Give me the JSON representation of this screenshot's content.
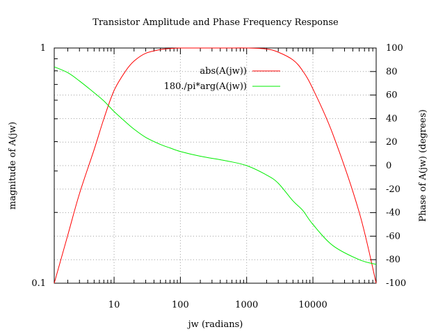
{
  "chart_data": {
    "type": "line",
    "title": "Transistor Amplitude and Phase Frequency Response",
    "xlabel": "jw (radians)",
    "ylabel": "magnitude of A(jw)",
    "y2label": "Phase of A(jw) (degrees)",
    "x_scale": "log",
    "y_scale": "log",
    "xlim": [
      1.25,
      90000
    ],
    "ylim": [
      0.1,
      1
    ],
    "y2lim": [
      -100,
      100
    ],
    "grid": true,
    "legend_position": "top-right",
    "x_ticks": [
      {
        "value": 10,
        "label": "10"
      },
      {
        "value": 100,
        "label": "100"
      },
      {
        "value": 1000,
        "label": "1000"
      },
      {
        "value": 10000,
        "label": "10000"
      }
    ],
    "y_ticks": [
      {
        "value": 0.1,
        "label": "0.1"
      },
      {
        "value": 1,
        "label": "1"
      }
    ],
    "y2_ticks": [
      {
        "value": 100,
        "label": "100"
      },
      {
        "value": 80,
        "label": "80"
      },
      {
        "value": 60,
        "label": "60"
      },
      {
        "value": 40,
        "label": "40"
      },
      {
        "value": 20,
        "label": "20"
      },
      {
        "value": 0,
        "label": "0"
      },
      {
        "value": -20,
        "label": "-20"
      },
      {
        "value": -40,
        "label": "-40"
      },
      {
        "value": -60,
        "label": "-60"
      },
      {
        "value": -80,
        "label": "-80"
      },
      {
        "value": -100,
        "label": "-100"
      }
    ],
    "series": [
      {
        "name": "abs(A(jw))",
        "axis": "y",
        "color": "#ff0000",
        "x": [
          1.25,
          2,
          3,
          5,
          7,
          10,
          15,
          20,
          30,
          50,
          70,
          100,
          200,
          500,
          1000,
          2000,
          3000,
          5000,
          7000,
          10000,
          20000,
          50000,
          90000
        ],
        "y": [
          0.1,
          0.16,
          0.24,
          0.37,
          0.5,
          0.66,
          0.8,
          0.88,
          0.95,
          0.985,
          0.995,
          1.0,
          1.0,
          1.0,
          1.0,
          0.99,
          0.96,
          0.89,
          0.8,
          0.67,
          0.43,
          0.2,
          0.1
        ]
      },
      {
        "name": "180./pi*arg(A(jw))",
        "axis": "y2",
        "color": "#00ee00",
        "x": [
          1.25,
          2,
          3,
          5,
          7,
          10,
          15,
          20,
          30,
          50,
          70,
          100,
          200,
          500,
          1000,
          2000,
          3000,
          5000,
          7000,
          10000,
          20000,
          50000,
          90000
        ],
        "y": [
          84,
          79,
          72,
          62,
          55,
          46,
          37,
          31,
          24,
          18,
          15,
          12,
          8,
          4,
          0,
          -8,
          -15,
          -30,
          -38,
          -50,
          -68,
          -80,
          -84
        ]
      }
    ]
  }
}
